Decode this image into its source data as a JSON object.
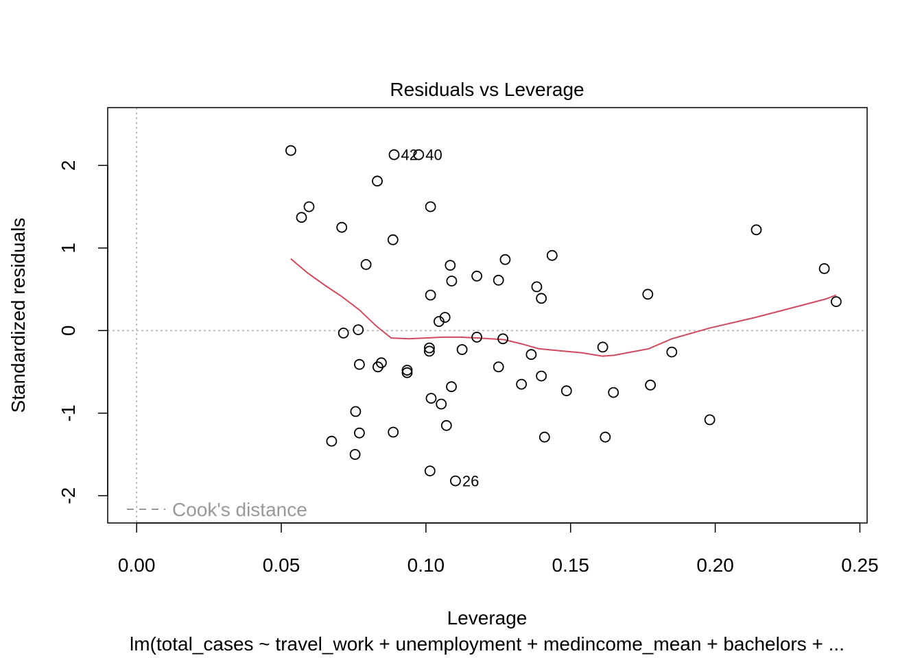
{
  "chart_data": {
    "type": "scatter",
    "title": "Residuals vs Leverage",
    "xlabel": "Leverage",
    "ylabel": "Standardized residuals",
    "subtitle": "lm(total_cases ~ travel_work + unemployment + medincome_mean + bachelors +  ...",
    "xlim": [
      -0.01,
      0.2525
    ],
    "ylim": [
      -2.33,
      2.7
    ],
    "xticks": [
      "0.00",
      "0.05",
      "0.10",
      "0.15",
      "0.20",
      "0.25"
    ],
    "yticks": [
      "-2",
      "-1",
      "0",
      "1",
      "2"
    ],
    "grid": false,
    "reference_lines": {
      "x": 0,
      "y": 0,
      "color": "#b3b3b3"
    },
    "legend": {
      "position": "bottom-left",
      "entries": [
        "Cook's distance"
      ],
      "color": "#999999"
    },
    "point_color": "#000000",
    "smooth_color": "#d1495b",
    "points": [
      {
        "x": 0.0533,
        "y": 2.18
      },
      {
        "x": 0.089,
        "y": 2.13,
        "label": "42"
      },
      {
        "x": 0.0975,
        "y": 2.13,
        "label": "40"
      },
      {
        "x": 0.0832,
        "y": 1.81
      },
      {
        "x": 0.0596,
        "y": 1.5
      },
      {
        "x": 0.1016,
        "y": 1.5
      },
      {
        "x": 0.057,
        "y": 1.37
      },
      {
        "x": 0.0709,
        "y": 1.25
      },
      {
        "x": 0.2142,
        "y": 1.22
      },
      {
        "x": 0.0886,
        "y": 1.1
      },
      {
        "x": 0.1436,
        "y": 0.91
      },
      {
        "x": 0.1274,
        "y": 0.86
      },
      {
        "x": 0.0793,
        "y": 0.8
      },
      {
        "x": 0.1084,
        "y": 0.79
      },
      {
        "x": 0.2377,
        "y": 0.75
      },
      {
        "x": 0.1176,
        "y": 0.66
      },
      {
        "x": 0.1251,
        "y": 0.61
      },
      {
        "x": 0.1089,
        "y": 0.6
      },
      {
        "x": 0.1383,
        "y": 0.53
      },
      {
        "x": 0.1767,
        "y": 0.44
      },
      {
        "x": 0.1016,
        "y": 0.43
      },
      {
        "x": 0.1399,
        "y": 0.39
      },
      {
        "x": 0.2418,
        "y": 0.35
      },
      {
        "x": 0.1066,
        "y": 0.16
      },
      {
        "x": 0.1045,
        "y": 0.11
      },
      {
        "x": 0.0766,
        "y": 0.01
      },
      {
        "x": 0.0715,
        "y": -0.03
      },
      {
        "x": 0.1176,
        "y": -0.08
      },
      {
        "x": 0.1266,
        "y": -0.1
      },
      {
        "x": 0.1012,
        "y": -0.21
      },
      {
        "x": 0.1611,
        "y": -0.2
      },
      {
        "x": 0.1012,
        "y": -0.25
      },
      {
        "x": 0.1125,
        "y": -0.23
      },
      {
        "x": 0.185,
        "y": -0.26
      },
      {
        "x": 0.1364,
        "y": -0.29
      },
      {
        "x": 0.0846,
        "y": -0.39
      },
      {
        "x": 0.077,
        "y": -0.41
      },
      {
        "x": 0.0834,
        "y": -0.44
      },
      {
        "x": 0.1251,
        "y": -0.44
      },
      {
        "x": 0.0935,
        "y": -0.48
      },
      {
        "x": 0.0935,
        "y": -0.51
      },
      {
        "x": 0.1399,
        "y": -0.55
      },
      {
        "x": 0.133,
        "y": -0.65
      },
      {
        "x": 0.1776,
        "y": -0.66
      },
      {
        "x": 0.1088,
        "y": -0.68
      },
      {
        "x": 0.1486,
        "y": -0.73
      },
      {
        "x": 0.1648,
        "y": -0.75
      },
      {
        "x": 0.1018,
        "y": -0.82
      },
      {
        "x": 0.1053,
        "y": -0.89
      },
      {
        "x": 0.0757,
        "y": -0.98
      },
      {
        "x": 0.1981,
        "y": -1.08
      },
      {
        "x": 0.1071,
        "y": -1.15
      },
      {
        "x": 0.0887,
        "y": -1.23
      },
      {
        "x": 0.077,
        "y": -1.24
      },
      {
        "x": 0.141,
        "y": -1.29
      },
      {
        "x": 0.162,
        "y": -1.29
      },
      {
        "x": 0.0674,
        "y": -1.34
      },
      {
        "x": 0.0755,
        "y": -1.5
      },
      {
        "x": 0.1014,
        "y": -1.7
      },
      {
        "x": 0.1102,
        "y": -1.82,
        "label": "26"
      }
    ],
    "smooth_line": [
      {
        "x": 0.0533,
        "y": 0.87
      },
      {
        "x": 0.059,
        "y": 0.7
      },
      {
        "x": 0.065,
        "y": 0.55
      },
      {
        "x": 0.071,
        "y": 0.41
      },
      {
        "x": 0.077,
        "y": 0.25
      },
      {
        "x": 0.083,
        "y": 0.05
      },
      {
        "x": 0.088,
        "y": -0.09
      },
      {
        "x": 0.094,
        "y": -0.1
      },
      {
        "x": 0.1,
        "y": -0.09
      },
      {
        "x": 0.106,
        "y": -0.08
      },
      {
        "x": 0.112,
        "y": -0.08
      },
      {
        "x": 0.118,
        "y": -0.09
      },
      {
        "x": 0.127,
        "y": -0.11
      },
      {
        "x": 0.133,
        "y": -0.16
      },
      {
        "x": 0.139,
        "y": -0.22
      },
      {
        "x": 0.145,
        "y": -0.24
      },
      {
        "x": 0.154,
        "y": -0.27
      },
      {
        "x": 0.161,
        "y": -0.31
      },
      {
        "x": 0.165,
        "y": -0.3
      },
      {
        "x": 0.177,
        "y": -0.22
      },
      {
        "x": 0.185,
        "y": -0.1
      },
      {
        "x": 0.198,
        "y": 0.03
      },
      {
        "x": 0.214,
        "y": 0.16
      },
      {
        "x": 0.238,
        "y": 0.38
      },
      {
        "x": 0.2418,
        "y": 0.43
      }
    ]
  }
}
